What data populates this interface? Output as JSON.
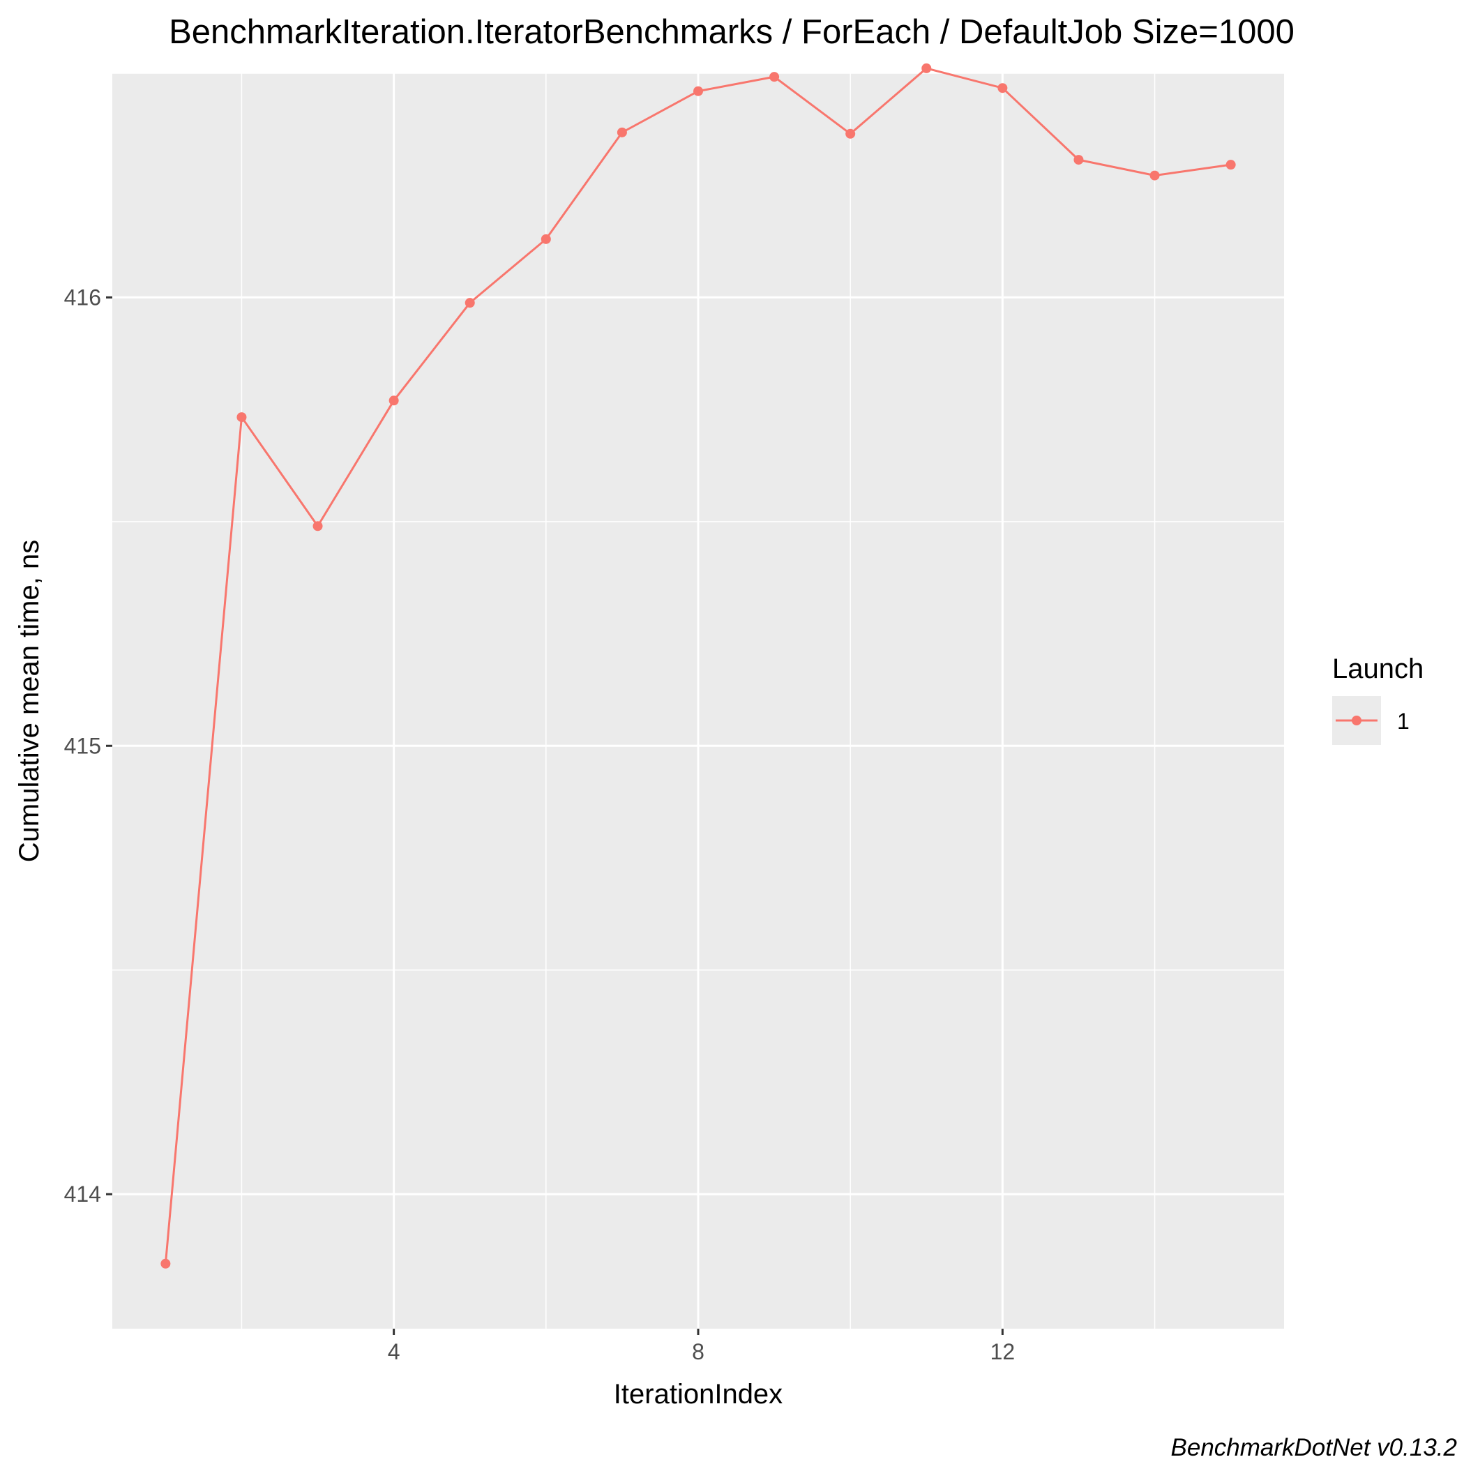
{
  "chart_data": {
    "type": "line",
    "title": "BenchmarkIteration.IteratorBenchmarks / ForEach / DefaultJob Size=1000",
    "xlabel": "IterationIndex",
    "ylabel": "Cumulative mean time, ns",
    "caption": "BenchmarkDotNet v0.13.2",
    "xlim": [
      0.3,
      15.7
    ],
    "ylim": [
      413.7,
      416.5
    ],
    "xticks": [
      4,
      8,
      12
    ],
    "xtick_labels": [
      "4",
      "8",
      "12"
    ],
    "yticks": [
      414,
      415,
      416
    ],
    "ytick_labels": [
      "414",
      "415",
      "416"
    ],
    "grid": true,
    "legend": {
      "title": "Launch",
      "position": "right",
      "labels": [
        "1"
      ]
    },
    "series": [
      {
        "name": "1",
        "color": "#F8766D",
        "x": [
          1,
          2,
          3,
          4,
          5,
          6,
          7,
          8,
          9,
          10,
          11,
          12,
          13,
          14,
          15
        ],
        "y": [
          413.845,
          415.733,
          415.49,
          415.77,
          415.988,
          416.13,
          416.368,
          416.46,
          416.492,
          416.365,
          416.511,
          416.467,
          416.307,
          416.272,
          416.296
        ]
      }
    ]
  },
  "colors": {
    "panel_background": "#EBEBEB",
    "grid_major": "#FFFFFF",
    "series": "#F8766D"
  }
}
